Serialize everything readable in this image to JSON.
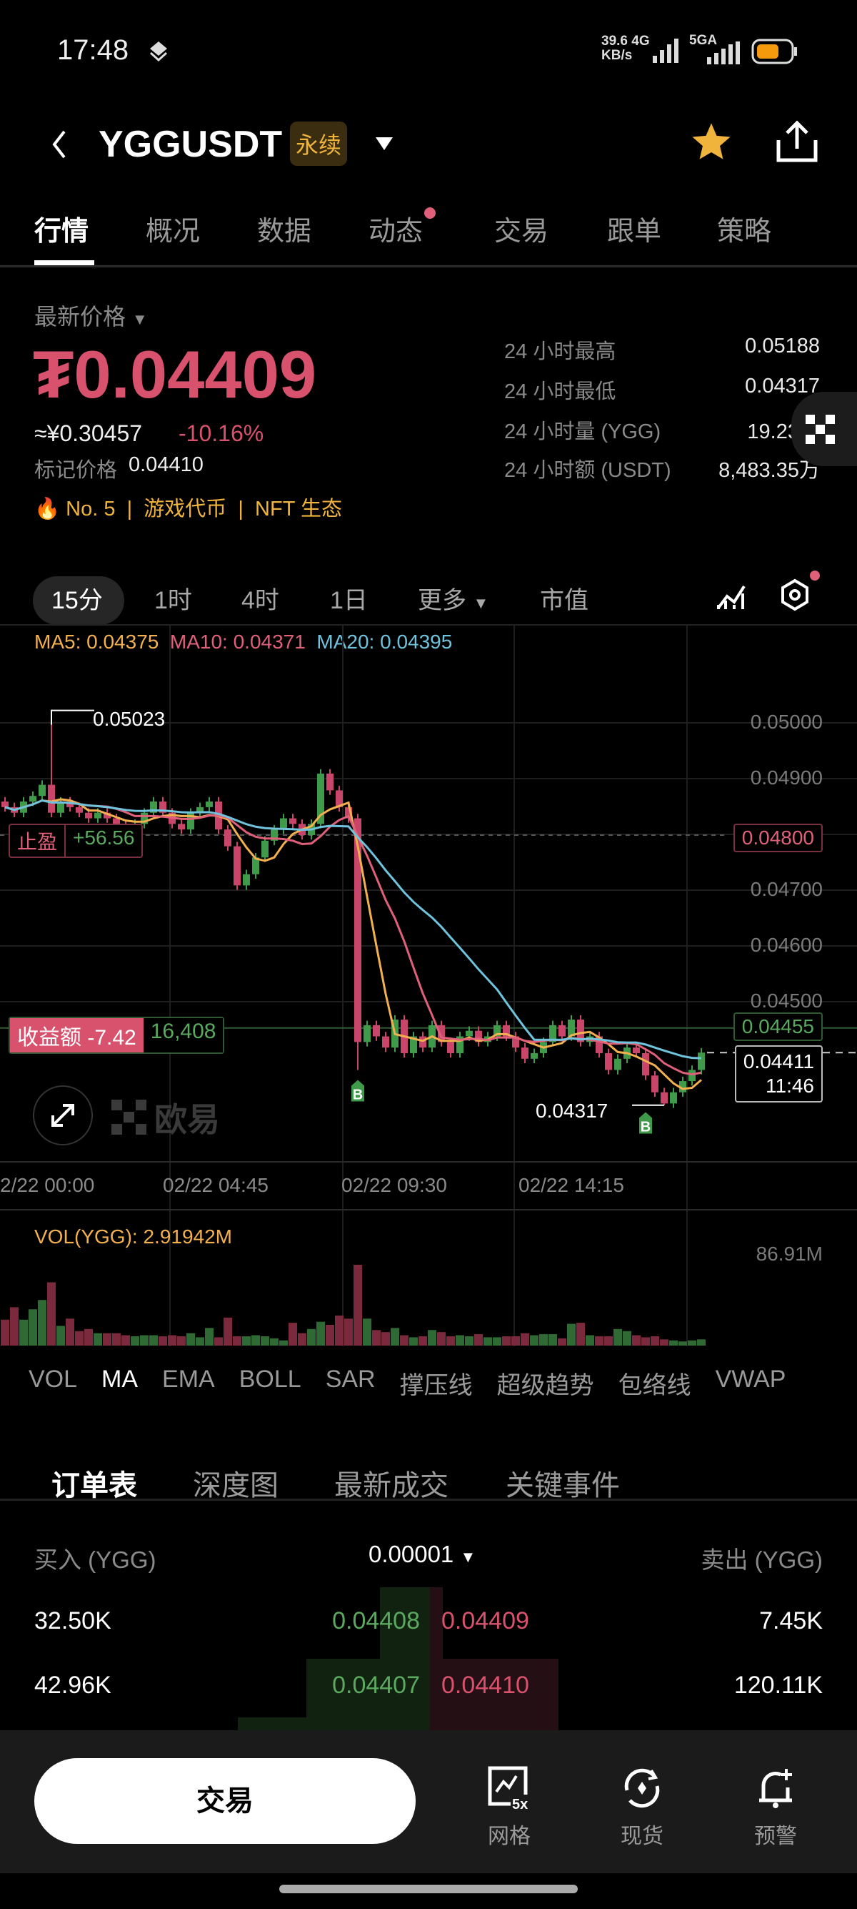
{
  "status_bar": {
    "time": "17:48",
    "net_speed": "39.6",
    "net_unit": "KB/s",
    "net1": "4G",
    "net2": "5GA",
    "battery_level": 0.6
  },
  "header": {
    "symbol": "YGGUSDT",
    "badge": "永续",
    "icons": [
      "back-icon",
      "chevron-down-icon",
      "star-icon",
      "share-icon"
    ],
    "star_color": "#f0b43c"
  },
  "tabs": [
    {
      "label": "行情",
      "active": true
    },
    {
      "label": "概况"
    },
    {
      "label": "数据"
    },
    {
      "label": "动态",
      "dot": true
    },
    {
      "label": "交易"
    },
    {
      "label": "跟单"
    },
    {
      "label": "策略"
    }
  ],
  "price": {
    "label": "最新价格",
    "value": "₮0.04409",
    "cny": "≈¥0.30457",
    "change": "-10.16%",
    "mark_label": "标记价格",
    "mark_value": "0.04410",
    "color_down": "#d8526e",
    "color_up": "#5aa95f"
  },
  "tags": {
    "rank": "No. 5",
    "tag1": "游戏代币",
    "tag2": "NFT 生态"
  },
  "stats": [
    {
      "label": "24 小时最高",
      "value": "0.05188"
    },
    {
      "label": "24 小时最低",
      "value": "0.04317"
    },
    {
      "label": "24 小时量 (YGG)",
      "value": "19.23亿"
    },
    {
      "label": "24 小时额 (USDT)",
      "value": "8,483.35万"
    }
  ],
  "timeframes": [
    "15分",
    "1时",
    "4时",
    "1日",
    "更多",
    "市值"
  ],
  "ma_legend": {
    "ma5": "MA5: 0.04375",
    "ma10": "MA10: 0.04371",
    "ma20": "MA20: 0.04395",
    "c5": "#f2b04f",
    "c10": "#e0607a",
    "c20": "#6fc3dc"
  },
  "chart": {
    "y_ticks": [
      "0.05000",
      "0.04900",
      "0.04800",
      "0.04700",
      "0.04600",
      "0.04500"
    ],
    "tp_price": "0.04800",
    "entry_price": "0.04455",
    "last_price": "0.04411",
    "countdown": "11:46",
    "tp_label": "止盈",
    "tp_pnl": "+56.56",
    "pnl_label": "收益额 -7.42",
    "position_size": "16,408",
    "max_label": "0.05023",
    "min_label": "0.04317",
    "buy_marker": "B",
    "watermark": "欧易",
    "x_ticks": [
      "2/22 00:00",
      "02/22 04:45",
      "02/22 09:30",
      "02/22 14:15"
    ],
    "vol_label": "VOL(YGG): 2.91942M",
    "vol_max": "86.91M"
  },
  "chart_data": {
    "type": "candlestick",
    "closes": [
      0.0485,
      0.0484,
      0.0486,
      0.0487,
      0.0489,
      0.0484,
      0.0486,
      0.0485,
      0.0484,
      0.0483,
      0.0484,
      0.0483,
      0.0482,
      0.0481,
      0.0482,
      0.0484,
      0.0486,
      0.0484,
      0.0482,
      0.0481,
      0.0484,
      0.0485,
      0.0486,
      0.0481,
      0.0478,
      0.0471,
      0.0473,
      0.0476,
      0.0479,
      0.0481,
      0.0483,
      0.0482,
      0.048,
      0.0482,
      0.0491,
      0.0488,
      0.0485,
      0.0483,
      0.0443,
      0.0446,
      0.0444,
      0.0442,
      0.0447,
      0.0441,
      0.0444,
      0.0442,
      0.0446,
      0.0443,
      0.0441,
      0.0444,
      0.0445,
      0.0443,
      0.0444,
      0.0446,
      0.0444,
      0.0442,
      0.044,
      0.0441,
      0.0443,
      0.0446,
      0.0444,
      0.0447,
      0.0443,
      0.0444,
      0.0441,
      0.0438,
      0.044,
      0.0442,
      0.0441,
      0.0437,
      0.0434,
      0.0432,
      0.0434,
      0.0436,
      0.0438,
      0.04411
    ],
    "volumes_m": [
      25,
      37,
      25,
      35,
      44,
      61,
      19,
      26,
      14,
      16,
      12,
      12,
      12,
      10,
      9,
      10,
      10,
      9,
      10,
      9,
      12,
      8,
      17,
      8,
      27,
      9,
      9,
      10,
      9,
      7,
      5,
      22,
      12,
      16,
      23,
      20,
      29,
      26,
      78,
      26,
      15,
      13,
      17,
      10,
      8,
      9,
      15,
      13,
      9,
      10,
      9,
      11,
      8,
      8,
      9,
      9,
      12,
      10,
      11,
      11,
      7,
      21,
      22,
      10,
      9,
      9,
      16,
      14,
      10,
      8,
      9,
      6,
      5,
      4,
      5,
      6
    ],
    "high": {
      "index": 5,
      "value": 0.05023
    },
    "low": {
      "index": 71,
      "value": 0.04317
    },
    "ylim": [
      0.0431,
      0.0504
    ]
  },
  "indicators": [
    "VOL",
    "MA",
    "EMA",
    "BOLL",
    "SAR",
    "撑压线",
    "超级趋势",
    "包络线",
    "VWAP"
  ],
  "orderbook": {
    "tabs": [
      "订单表",
      "深度图",
      "最新成交",
      "关键事件"
    ],
    "bid_header": "买入 (YGG)",
    "ask_header": "卖出 (YGG)",
    "precision": "0.00001",
    "rows": [
      {
        "bid_qty": "32.50K",
        "bid": "0.04408",
        "ask": "0.04409",
        "ask_qty": "7.45K"
      },
      {
        "bid_qty": "42.96K",
        "bid": "0.04407",
        "ask": "0.04410",
        "ask_qty": "120.11K"
      }
    ]
  },
  "bottom": {
    "trade": "交易",
    "grid": "网格",
    "grid_badge": "5x",
    "spot": "现货",
    "alert": "预警"
  }
}
